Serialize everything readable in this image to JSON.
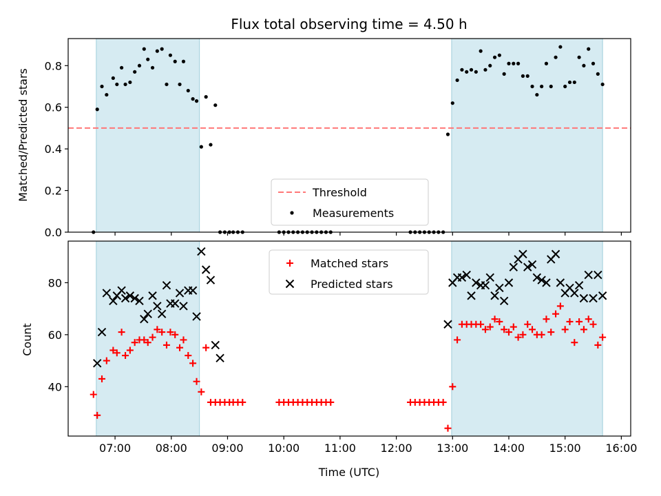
{
  "chart_data": [
    {
      "type": "scatter",
      "title": "Flux total observing time = 4.50 h",
      "xlabel": "",
      "ylabel": "Matched/Predicted stars",
      "ylim": [
        0,
        0.93
      ],
      "yticks": [
        0.0,
        0.2,
        0.4,
        0.6,
        0.8
      ],
      "ytick_labels": [
        "0.0",
        "0.2",
        "0.4",
        "0.6",
        "0.8"
      ],
      "xlim": [
        "06:10",
        "16:10"
      ],
      "threshold": {
        "name": "Threshold",
        "value": 0.5,
        "color": "#ff7777"
      },
      "shaded_intervals": [
        [
          "06:40",
          "08:30"
        ],
        [
          "12:59",
          "15:40"
        ]
      ],
      "legend": {
        "placement": "lower-center",
        "entries": [
          "Threshold",
          "Measurements"
        ]
      },
      "series": [
        {
          "name": "Measurements",
          "color": "#000000",
          "marker": "dot",
          "x": [
            "06:37",
            "06:41",
            "06:46",
            "06:51",
            "06:58",
            "07:02",
            "07:07",
            "07:11",
            "07:16",
            "07:21",
            "07:26",
            "07:31",
            "07:35",
            "07:40",
            "07:45",
            "07:50",
            "07:55",
            "07:59",
            "08:04",
            "08:09",
            "08:13",
            "08:18",
            "08:23",
            "08:27",
            "08:32",
            "08:37",
            "08:42",
            "08:47",
            "08:52",
            "08:57",
            "09:02",
            "09:06",
            "09:11",
            "09:16",
            "09:55",
            "10:00",
            "10:05",
            "10:10",
            "10:15",
            "10:20",
            "10:25",
            "10:30",
            "10:35",
            "10:40",
            "10:45",
            "10:50",
            "12:15",
            "12:20",
            "12:25",
            "12:30",
            "12:35",
            "12:40",
            "12:45",
            "12:50",
            "12:55",
            "13:00",
            "13:05",
            "13:10",
            "13:15",
            "13:20",
            "13:25",
            "13:30",
            "13:35",
            "13:40",
            "13:45",
            "13:50",
            "13:55",
            "14:00",
            "14:05",
            "14:10",
            "14:15",
            "14:20",
            "14:25",
            "14:30",
            "14:35",
            "14:40",
            "14:45",
            "14:50",
            "14:55",
            "15:00",
            "15:05",
            "15:10",
            "15:15",
            "15:20",
            "15:25",
            "15:30",
            "15:35",
            "15:40"
          ],
          "y": [
            0.0,
            0.59,
            0.7,
            0.66,
            0.74,
            0.71,
            0.79,
            0.71,
            0.72,
            0.77,
            0.8,
            0.88,
            0.83,
            0.79,
            0.87,
            0.88,
            0.71,
            0.85,
            0.82,
            0.71,
            0.82,
            0.68,
            0.64,
            0.63,
            0.41,
            0.65,
            0.42,
            0.61,
            0.0,
            0.0,
            0.0,
            0.0,
            0.0,
            0.0,
            0.0,
            0.0,
            0.0,
            0.0,
            0.0,
            0.0,
            0.0,
            0.0,
            0.0,
            0.0,
            0.0,
            0.0,
            0.0,
            0.0,
            0.0,
            0.0,
            0.0,
            0.0,
            0.0,
            0.0,
            0.47,
            0.62,
            0.73,
            0.78,
            0.77,
            0.78,
            0.77,
            0.87,
            0.78,
            0.8,
            0.84,
            0.85,
            0.76,
            0.81,
            0.81,
            0.81,
            0.75,
            0.75,
            0.7,
            0.66,
            0.7,
            0.81,
            0.7,
            0.84,
            0.89,
            0.7,
            0.72,
            0.72,
            0.84,
            0.8,
            0.88,
            0.81,
            0.76,
            0.71
          ]
        }
      ]
    },
    {
      "type": "scatter",
      "title": "",
      "xlabel": "Time (UTC)",
      "ylabel": "Count",
      "ylim": [
        21,
        96
      ],
      "yticks": [
        40,
        60,
        80
      ],
      "ytick_labels": [
        "40",
        "60",
        "80"
      ],
      "xlim": [
        "06:10",
        "16:10"
      ],
      "xticks": [
        "07:00",
        "08:00",
        "09:00",
        "10:00",
        "11:00",
        "12:00",
        "13:00",
        "14:00",
        "15:00",
        "16:00"
      ],
      "xtick_labels": [
        "07:00",
        "08:00",
        "09:00",
        "10:00",
        "11:00",
        "12:00",
        "13:00",
        "14:00",
        "15:00",
        "16:00"
      ],
      "shaded_intervals": [
        [
          "06:40",
          "08:30"
        ],
        [
          "12:59",
          "15:40"
        ]
      ],
      "legend": {
        "placement": "top-center",
        "entries": [
          "Matched stars",
          "Predicted stars"
        ]
      },
      "series": [
        {
          "name": "Matched stars",
          "color": "#ff0000",
          "marker": "plus",
          "x": [
            "06:37",
            "06:41",
            "06:46",
            "06:51",
            "06:58",
            "07:02",
            "07:07",
            "07:11",
            "07:16",
            "07:21",
            "07:26",
            "07:31",
            "07:35",
            "07:40",
            "07:45",
            "07:50",
            "07:55",
            "07:59",
            "08:04",
            "08:09",
            "08:13",
            "08:18",
            "08:23",
            "08:27",
            "08:32",
            "08:37",
            "08:42",
            "08:47",
            "08:52",
            "08:57",
            "09:02",
            "09:06",
            "09:11",
            "09:16",
            "09:55",
            "10:00",
            "10:05",
            "10:10",
            "10:15",
            "10:20",
            "10:25",
            "10:30",
            "10:35",
            "10:40",
            "10:45",
            "10:50",
            "12:15",
            "12:20",
            "12:25",
            "12:30",
            "12:35",
            "12:40",
            "12:45",
            "12:50",
            "12:55",
            "13:00",
            "13:05",
            "13:10",
            "13:15",
            "13:20",
            "13:25",
            "13:30",
            "13:35",
            "13:40",
            "13:45",
            "13:50",
            "13:55",
            "14:00",
            "14:05",
            "14:10",
            "14:15",
            "14:20",
            "14:25",
            "14:30",
            "14:35",
            "14:40",
            "14:45",
            "14:50",
            "14:55",
            "15:00",
            "15:05",
            "15:10",
            "15:15",
            "15:20",
            "15:25",
            "15:30",
            "15:35",
            "15:40"
          ],
          "y": [
            37,
            29,
            43,
            50,
            54,
            53,
            61,
            52,
            54,
            57,
            58,
            58,
            57,
            59,
            62,
            61,
            56,
            61,
            60,
            55,
            58,
            52,
            49,
            42,
            38,
            55,
            34,
            34,
            34,
            34,
            34,
            34,
            34,
            34,
            34,
            34,
            34,
            34,
            34,
            34,
            34,
            34,
            34,
            34,
            34,
            34,
            34,
            34,
            34,
            34,
            34,
            34,
            34,
            34,
            24,
            40,
            58,
            64,
            64,
            64,
            64,
            64,
            62,
            63,
            66,
            65,
            62,
            61,
            63,
            59,
            60,
            64,
            62,
            60,
            60,
            66,
            61,
            68,
            71,
            62,
            65,
            57,
            65,
            62,
            66,
            64,
            56,
            59
          ]
        },
        {
          "name": "Predicted stars",
          "color": "#000000",
          "marker": "x",
          "x": [
            "06:41",
            "06:46",
            "06:51",
            "06:58",
            "07:02",
            "07:07",
            "07:11",
            "07:16",
            "07:21",
            "07:26",
            "07:31",
            "07:35",
            "07:40",
            "07:45",
            "07:50",
            "07:55",
            "07:59",
            "08:04",
            "08:09",
            "08:13",
            "08:18",
            "08:23",
            "08:27",
            "08:32",
            "08:37",
            "08:42",
            "08:47",
            "08:52",
            "12:55",
            "13:00",
            "13:05",
            "13:10",
            "13:15",
            "13:20",
            "13:25",
            "13:30",
            "13:35",
            "13:40",
            "13:45",
            "13:50",
            "13:55",
            "14:00",
            "14:05",
            "14:10",
            "14:15",
            "14:20",
            "14:25",
            "14:30",
            "14:35",
            "14:40",
            "14:45",
            "14:50",
            "14:55",
            "15:00",
            "15:05",
            "15:10",
            "15:15",
            "15:20",
            "15:25",
            "15:30",
            "15:35",
            "15:40"
          ],
          "y": [
            49,
            61,
            76,
            73,
            75,
            77,
            74,
            75,
            74,
            73,
            66,
            68,
            75,
            71,
            68,
            79,
            72,
            72,
            76,
            71,
            77,
            77,
            67,
            92,
            85,
            81,
            56,
            51,
            64,
            80,
            82,
            82,
            83,
            75,
            80,
            79,
            79,
            82,
            75,
            78,
            73,
            80,
            86,
            89,
            91,
            86,
            87,
            82,
            81,
            80,
            89,
            91,
            80,
            76,
            78,
            76,
            79,
            74,
            83,
            74,
            83,
            75
          ]
        }
      ]
    }
  ]
}
